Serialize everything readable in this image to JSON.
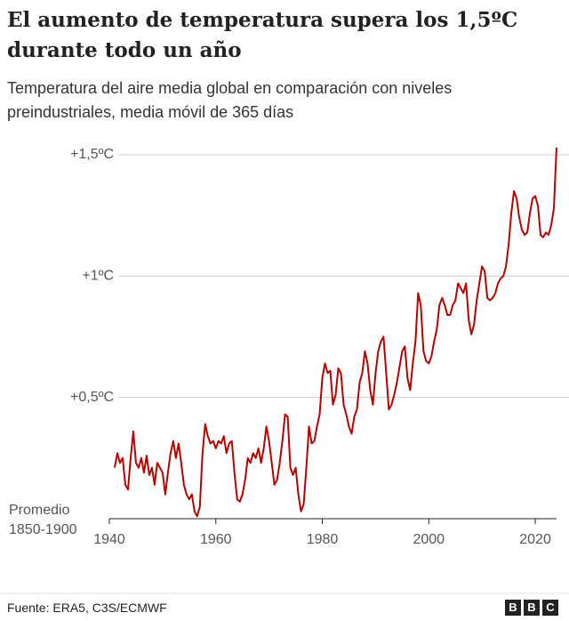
{
  "chart_data": {
    "type": "line",
    "title": "El aumento de temperatura supera los 1,5ºC durante todo un año",
    "subtitle": "Temperatura del aire media global en comparación con niveles preindustriales, media móvil de 365 días",
    "source": "Fuente: ERA5, C3S/ECMWF",
    "logo": [
      "B",
      "B",
      "C"
    ],
    "xlim": [
      1940,
      2024
    ],
    "xticks": [
      1940,
      1960,
      1980,
      2000,
      2020
    ],
    "ylim": [
      0,
      1.5
    ],
    "yticks": [
      {
        "value": 0,
        "label": "Promedio 1850-1900"
      },
      {
        "value": 0.5,
        "label": "+0,5ºC"
      },
      {
        "value": 1,
        "label": "+1ºC"
      },
      {
        "value": 1.5,
        "label": "+1,5ºC"
      }
    ],
    "grid": true,
    "x": [
      1941,
      1941.5,
      1942,
      1942.5,
      1943,
      1943.5,
      1944,
      1944.5,
      1945,
      1945.5,
      1946,
      1946.5,
      1947,
      1947.5,
      1948,
      1948.5,
      1949,
      1950,
      1950.5,
      1951,
      1951.5,
      1952,
      1952.5,
      1953,
      1953.5,
      1954,
      1954.5,
      1955,
      1955.5,
      1956,
      1956.5,
      1957,
      1957.5,
      1958,
      1958.5,
      1959,
      1959.5,
      1960,
      1960.5,
      1961,
      1961.5,
      1962,
      1962.5,
      1963,
      1963.5,
      1964,
      1964.5,
      1965,
      1965.5,
      1966,
      1966.5,
      1967,
      1967.5,
      1968,
      1968.5,
      1969,
      1969.5,
      1970,
      1970.5,
      1971,
      1971.5,
      1972,
      1972.5,
      1973,
      1973.5,
      1974,
      1974.5,
      1975,
      1975.5,
      1976,
      1976.5,
      1977,
      1977.5,
      1978,
      1978.5,
      1979,
      1979.5,
      1980,
      1980.5,
      1981,
      1981.5,
      1982,
      1982.5,
      1983,
      1983.5,
      1984,
      1984.5,
      1985,
      1985.5,
      1986,
      1986.5,
      1987,
      1987.5,
      1988,
      1988.5,
      1989,
      1989.5,
      1990,
      1990.5,
      1991,
      1991.5,
      1992,
      1992.5,
      1993,
      1993.5,
      1994,
      1995,
      1995.5,
      1996,
      1996.5,
      1997,
      1997.5,
      1998,
      1998.5,
      1999,
      1999.5,
      2000,
      2000.5,
      2001,
      2001.5,
      2002,
      2002.5,
      2003,
      2003.5,
      2004,
      2004.5,
      2005,
      2005.5,
      2006,
      2006.5,
      2007,
      2007.5,
      2008,
      2008.5,
      2009,
      2009.5,
      2010,
      2010.5,
      2011,
      2011.5,
      2012,
      2012.5,
      2013,
      2013.5,
      2014,
      2014.5,
      2015,
      2015.5,
      2016,
      2016.5,
      2017,
      2017.5,
      2018,
      2018.5,
      2019,
      2019.5,
      2020,
      2020.5,
      2021,
      2021.5,
      2022,
      2022.5,
      2023,
      2023.5,
      2024
    ],
    "series": [
      {
        "color": "#b80000",
        "values": [
          0.21,
          0.27,
          0.23,
          0.25,
          0.14,
          0.12,
          0.25,
          0.36,
          0.23,
          0.21,
          0.25,
          0.19,
          0.26,
          0.18,
          0.21,
          0.14,
          0.23,
          0.19,
          0.1,
          0.19,
          0.27,
          0.32,
          0.25,
          0.31,
          0.23,
          0.14,
          0.1,
          0.08,
          0.1,
          0.03,
          0.01,
          0.05,
          0.27,
          0.39,
          0.34,
          0.31,
          0.32,
          0.29,
          0.32,
          0.31,
          0.34,
          0.27,
          0.31,
          0.32,
          0.19,
          0.08,
          0.07,
          0.1,
          0.16,
          0.25,
          0.23,
          0.27,
          0.25,
          0.29,
          0.23,
          0.29,
          0.38,
          0.32,
          0.23,
          0.14,
          0.16,
          0.23,
          0.32,
          0.43,
          0.42,
          0.21,
          0.18,
          0.21,
          0.1,
          0.03,
          0.06,
          0.21,
          0.38,
          0.31,
          0.32,
          0.38,
          0.43,
          0.58,
          0.64,
          0.6,
          0.61,
          0.47,
          0.51,
          0.62,
          0.6,
          0.47,
          0.43,
          0.38,
          0.35,
          0.42,
          0.45,
          0.56,
          0.6,
          0.69,
          0.64,
          0.53,
          0.47,
          0.6,
          0.69,
          0.73,
          0.75,
          0.6,
          0.45,
          0.47,
          0.51,
          0.56,
          0.69,
          0.71,
          0.58,
          0.53,
          0.64,
          0.73,
          0.93,
          0.88,
          0.69,
          0.65,
          0.64,
          0.67,
          0.73,
          0.78,
          0.88,
          0.91,
          0.88,
          0.84,
          0.84,
          0.88,
          0.9,
          0.97,
          0.95,
          0.93,
          0.97,
          0.82,
          0.76,
          0.8,
          0.9,
          0.97,
          1.04,
          1.02,
          0.91,
          0.9,
          0.91,
          0.93,
          0.97,
          0.99,
          1.0,
          1.04,
          1.13,
          1.26,
          1.35,
          1.32,
          1.24,
          1.19,
          1.17,
          1.18,
          1.26,
          1.32,
          1.33,
          1.29,
          1.17,
          1.16,
          1.18,
          1.17,
          1.21,
          1.28,
          1.53
        ]
      }
    ]
  }
}
